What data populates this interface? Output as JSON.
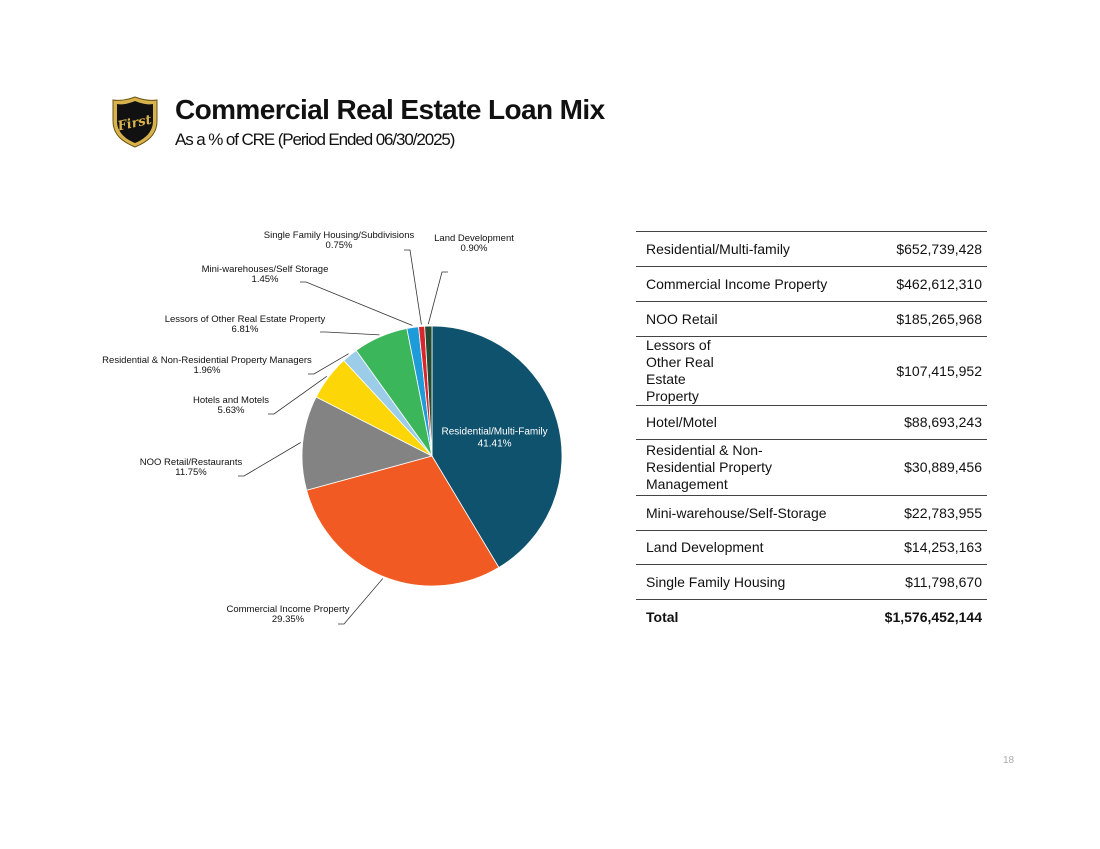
{
  "header": {
    "title": "Commercial Real Estate Loan Mix",
    "subtitle": "As a % of CRE (Period Ended 06/30/2025)",
    "logo_text": "First"
  },
  "colors": {
    "logo_fill": "#111111",
    "logo_gold": "#d8b24a"
  },
  "chart_data": {
    "type": "pie",
    "title": "",
    "slices": [
      {
        "label": "Residential/Multi-Family",
        "pct": "41.41%",
        "value": 41.41,
        "color": "#0f526e",
        "label_inside": true
      },
      {
        "label": "Commercial Income Property",
        "pct": "29.35%",
        "value": 29.35,
        "color": "#f15a22"
      },
      {
        "label": "NOO Retail/Restaurants",
        "pct": "11.75%",
        "value": 11.75,
        "color": "#838383"
      },
      {
        "label": "Hotels and Motels",
        "pct": "5.63%",
        "value": 5.63,
        "color": "#fdd608"
      },
      {
        "label": "Residential & Non-Residential Property Managers",
        "pct": "1.96%",
        "value": 1.96,
        "color": "#9ccde8"
      },
      {
        "label": "Lessors of Other Real Estate Property",
        "pct": "6.81%",
        "value": 6.81,
        "color": "#3cb65b"
      },
      {
        "label": "Mini-warehouses/Self Storage",
        "pct": "1.45%",
        "value": 1.45,
        "color": "#1e9cd9"
      },
      {
        "label": "Single Family Housing/Subdivisions",
        "pct": "0.75%",
        "value": 0.75,
        "color": "#d8262e"
      },
      {
        "label": "Land Development",
        "pct": "0.90%",
        "value": 0.9,
        "color": "#234a32"
      }
    ]
  },
  "table": {
    "rows": [
      {
        "name": "Residential/Multi-family",
        "amount": "$652,739,428"
      },
      {
        "name": "Commercial Income Property",
        "amount": "$462,612,310"
      },
      {
        "name": "NOO Retail",
        "amount": "$185,265,968"
      },
      {
        "name": "Lessors of Other Real Estate Property",
        "amount": "$107,415,952"
      },
      {
        "name": "Hotel/Motel",
        "amount": "$88,693,243"
      },
      {
        "name": "Residential & Non-Residential Property Management",
        "amount": "$30,889,456"
      },
      {
        "name": "Mini-warehouse/Self-Storage",
        "amount": "$22,783,955"
      },
      {
        "name": "Land Development",
        "amount": "$14,253,163"
      },
      {
        "name": "Single Family Housing",
        "amount": "$11,798,670"
      }
    ],
    "total": {
      "name": "Total",
      "amount": "$1,576,452,144"
    }
  },
  "footer": {
    "page_number": "18"
  }
}
